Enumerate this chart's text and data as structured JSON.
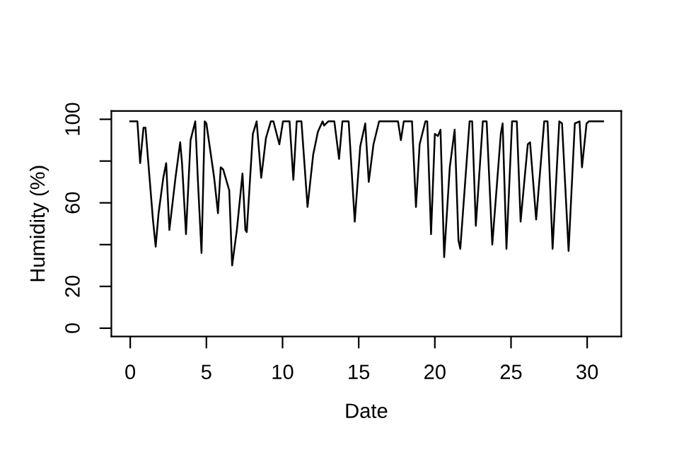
{
  "chart_data": {
    "type": "line",
    "xlabel": "Date",
    "ylabel": "Humidity (%)",
    "xlim": [
      -1.24,
      32.24
    ],
    "ylim": [
      -4,
      104
    ],
    "xticks": [
      0,
      5,
      10,
      15,
      20,
      25,
      30
    ],
    "yticks": [
      0,
      20,
      {
        "value": 40,
        "label": null
      },
      60,
      {
        "value": 80,
        "label": null
      },
      100
    ],
    "grid": false,
    "legend": false,
    "marker": "none",
    "line_style": "solid",
    "series": [
      {
        "color": "#000000",
        "x": [
          0,
          0.47,
          0.65,
          0.87,
          1.0,
          1.49,
          1.67,
          1.86,
          2.17,
          2.36,
          2.57,
          2.97,
          3.28,
          3.4,
          3.66,
          3.96,
          4.27,
          4.46,
          4.68,
          4.89,
          5.0,
          5.51,
          5.76,
          5.94,
          6.1,
          6.5,
          6.69,
          7.0,
          7.37,
          7.56,
          7.65,
          8.05,
          8.3,
          8.6,
          8.91,
          9.23,
          9.4,
          9.79,
          10.03,
          10.46,
          10.71,
          10.93,
          11.24,
          11.64,
          12.01,
          12.32,
          12.63,
          12.73,
          13.0,
          13.4,
          13.71,
          13.93,
          14.34,
          14.74,
          15.1,
          15.43,
          15.66,
          15.97,
          16.34,
          17.58,
          17.77,
          17.96,
          18.5,
          18.76,
          19.0,
          19.38,
          19.5,
          19.75,
          20.0,
          20.2,
          20.37,
          20.61,
          20.98,
          21.3,
          21.55,
          21.67,
          22.28,
          22.45,
          22.69,
          23.15,
          23.4,
          23.77,
          24.33,
          24.45,
          24.7,
          25.07,
          25.38,
          25.63,
          26.1,
          26.25,
          26.65,
          27.18,
          27.4,
          27.73,
          28.17,
          28.35,
          28.78,
          29.19,
          29.5,
          29.66,
          29.96,
          30.12,
          31.05
        ],
        "values": [
          99,
          99,
          79,
          96,
          96,
          52,
          39,
          55,
          72,
          79,
          47,
          72,
          89,
          79,
          45,
          90,
          99,
          68,
          36,
          99,
          98,
          72,
          55,
          77,
          76,
          66,
          30,
          47,
          74,
          47,
          46,
          93,
          99,
          72,
          91,
          99,
          99,
          88,
          99,
          99,
          71,
          99,
          99,
          58,
          83,
          94,
          99,
          97,
          99,
          99,
          81,
          99,
          99,
          51,
          87,
          98,
          70,
          88,
          99,
          99,
          90,
          99,
          99,
          58,
          88,
          99,
          99,
          45,
          93,
          92,
          95,
          34,
          77,
          95,
          42,
          38,
          99,
          99,
          49,
          99,
          99,
          40,
          93,
          98,
          38,
          99,
          99,
          51,
          88,
          89,
          52,
          99,
          99,
          38,
          99,
          98,
          37,
          98,
          99,
          77,
          98,
          99,
          99
        ]
      }
    ]
  }
}
